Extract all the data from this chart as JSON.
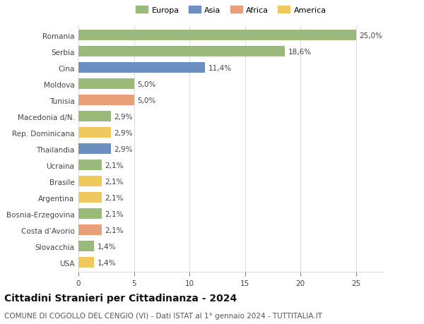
{
  "categories": [
    "Romania",
    "Serbia",
    "Cina",
    "Moldova",
    "Tunisia",
    "Macedonia d/N.",
    "Rep. Dominicana",
    "Thailandia",
    "Ucraina",
    "Brasile",
    "Argentina",
    "Bosnia-Erzegovina",
    "Costa d’Avorio",
    "Slovacchia",
    "USA"
  ],
  "values": [
    25.0,
    18.6,
    11.4,
    5.0,
    5.0,
    2.9,
    2.9,
    2.9,
    2.1,
    2.1,
    2.1,
    2.1,
    2.1,
    1.4,
    1.4
  ],
  "continents": [
    "Europa",
    "Europa",
    "Asia",
    "Europa",
    "Africa",
    "Europa",
    "America",
    "Asia",
    "Europa",
    "America",
    "America",
    "Europa",
    "Africa",
    "Europa",
    "America"
  ],
  "labels": [
    "25,0%",
    "18,6%",
    "11,4%",
    "5,0%",
    "5,0%",
    "2,9%",
    "2,9%",
    "2,9%",
    "2,1%",
    "2,1%",
    "2,1%",
    "2,1%",
    "2,1%",
    "1,4%",
    "1,4%"
  ],
  "colors": {
    "Europa": "#9aba7c",
    "Asia": "#6a8fc0",
    "Africa": "#e8a07a",
    "America": "#f0c860"
  },
  "legend_order": [
    "Europa",
    "Asia",
    "Africa",
    "America"
  ],
  "title": "Cittadini Stranieri per Cittadinanza - 2024",
  "subtitle": "COMUNE DI COGOLLO DEL CENGIO (VI) - Dati ISTAT al 1° gennaio 2024 - TUTTITALIA.IT",
  "xlim": [
    0,
    27.5
  ],
  "xticks": [
    0,
    5,
    10,
    15,
    20,
    25
  ],
  "background_color": "#ffffff",
  "grid_color": "#dddddd",
  "bar_height": 0.65,
  "label_fontsize": 7.5,
  "tick_fontsize": 7.5,
  "title_fontsize": 10,
  "subtitle_fontsize": 7.5
}
